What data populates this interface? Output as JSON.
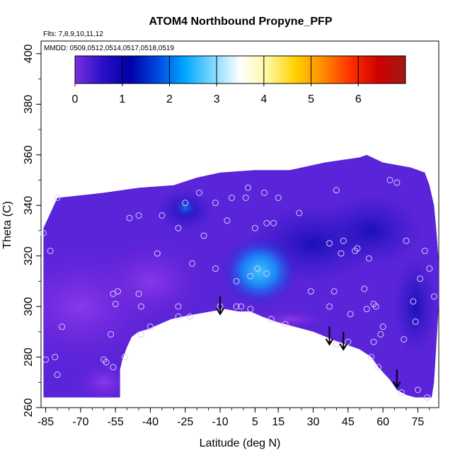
{
  "chart_data": {
    "type": "heatmap",
    "title": "ATOM4 Northbound Propyne_PFP",
    "flights_note": "Flts: 7,8,9,10,11,12",
    "dates_note": "MMDD: 0509,0512,0514,0517,0518,0519",
    "xlabel": "Latitude (deg N)",
    "ylabel": "Theta (C)",
    "xlim": [
      -87,
      84
    ],
    "ylim": [
      260,
      405
    ],
    "x_ticks": [
      -85,
      -70,
      -55,
      -40,
      -25,
      -10,
      5,
      15,
      30,
      45,
      60,
      75
    ],
    "x_tick_labels": [
      "-85",
      "-70",
      "-55",
      "-40",
      "-25",
      "-10",
      "5",
      "15",
      "30",
      "45",
      "60",
      "75"
    ],
    "y_ticks": [
      260,
      280,
      300,
      320,
      340,
      360,
      380,
      400
    ],
    "y_tick_labels": [
      "260",
      "280",
      "300",
      "320",
      "340",
      "360",
      "380",
      "400"
    ],
    "colorbar": {
      "range": [
        0,
        7
      ],
      "ticks": [
        0,
        1,
        2,
        3,
        4,
        5,
        6
      ],
      "tick_labels": [
        "0",
        "1",
        "2",
        "3",
        "4",
        "5",
        "6"
      ],
      "colors": [
        "#7b2fe0",
        "#2a10c8",
        "#0000a8",
        "#0048e0",
        "#00a8ff",
        "#7fd8ff",
        "#ffffff",
        "#fff7a0",
        "#ffd000",
        "#ff8c00",
        "#ff3000",
        "#d00000",
        "#a01818"
      ]
    },
    "field_color_low": "#7a28e0",
    "field_color_mid": "#2a1acb",
    "field_color_high": "#1fa0ff",
    "sample_points": [
      {
        "x": -86,
        "y": 329
      },
      {
        "x": -85,
        "y": 279
      },
      {
        "x": -83,
        "y": 322
      },
      {
        "x": -80,
        "y": 343
      },
      {
        "x": -81,
        "y": 280
      },
      {
        "x": -80,
        "y": 273
      },
      {
        "x": -78,
        "y": 292
      },
      {
        "x": -60,
        "y": 279
      },
      {
        "x": -59,
        "y": 278
      },
      {
        "x": -56,
        "y": 305
      },
      {
        "x": -54,
        "y": 306
      },
      {
        "x": -55,
        "y": 301
      },
      {
        "x": -57,
        "y": 289
      },
      {
        "x": -56,
        "y": 276
      },
      {
        "x": -51,
        "y": 280
      },
      {
        "x": -49,
        "y": 335
      },
      {
        "x": -45,
        "y": 336
      },
      {
        "x": -45,
        "y": 305
      },
      {
        "x": -44,
        "y": 300
      },
      {
        "x": -44,
        "y": 289
      },
      {
        "x": -40,
        "y": 292
      },
      {
        "x": -37,
        "y": 321
      },
      {
        "x": -35,
        "y": 336
      },
      {
        "x": -28,
        "y": 331
      },
      {
        "x": -28,
        "y": 300
      },
      {
        "x": -28,
        "y": 296
      },
      {
        "x": -25,
        "y": 341
      },
      {
        "x": -23,
        "y": 296
      },
      {
        "x": -22,
        "y": 317
      },
      {
        "x": -19,
        "y": 345
      },
      {
        "x": -17,
        "y": 328
      },
      {
        "x": -12,
        "y": 341
      },
      {
        "x": -12,
        "y": 315
      },
      {
        "x": -10,
        "y": 300
      },
      {
        "x": -7,
        "y": 334
      },
      {
        "x": -5,
        "y": 343
      },
      {
        "x": -3,
        "y": 310
      },
      {
        "x": -3,
        "y": 300
      },
      {
        "x": -1,
        "y": 300
      },
      {
        "x": 1,
        "y": 343
      },
      {
        "x": 2,
        "y": 347
      },
      {
        "x": 3,
        "y": 299
      },
      {
        "x": 3,
        "y": 312
      },
      {
        "x": 5,
        "y": 331
      },
      {
        "x": 6,
        "y": 315
      },
      {
        "x": 9,
        "y": 345
      },
      {
        "x": 10,
        "y": 333
      },
      {
        "x": 10,
        "y": 313
      },
      {
        "x": 12,
        "y": 295
      },
      {
        "x": 13,
        "y": 333
      },
      {
        "x": 15,
        "y": 343
      },
      {
        "x": 18,
        "y": 293
      },
      {
        "x": 24,
        "y": 337
      },
      {
        "x": 29,
        "y": 306
      },
      {
        "x": 37,
        "y": 325
      },
      {
        "x": 37,
        "y": 300
      },
      {
        "x": 39,
        "y": 306
      },
      {
        "x": 40,
        "y": 346
      },
      {
        "x": 42,
        "y": 321
      },
      {
        "x": 43,
        "y": 326
      },
      {
        "x": 40,
        "y": 285
      },
      {
        "x": 46,
        "y": 297
      },
      {
        "x": 45,
        "y": 286
      },
      {
        "x": 48,
        "y": 322
      },
      {
        "x": 49,
        "y": 323
      },
      {
        "x": 52,
        "y": 307
      },
      {
        "x": 53,
        "y": 299
      },
      {
        "x": 54,
        "y": 319
      },
      {
        "x": 55,
        "y": 280
      },
      {
        "x": 56,
        "y": 286
      },
      {
        "x": 56,
        "y": 301
      },
      {
        "x": 57,
        "y": 300
      },
      {
        "x": 58,
        "y": 276
      },
      {
        "x": 59,
        "y": 289
      },
      {
        "x": 60,
        "y": 292
      },
      {
        "x": 63,
        "y": 350
      },
      {
        "x": 66,
        "y": 349
      },
      {
        "x": 68,
        "y": 266
      },
      {
        "x": 69,
        "y": 287
      },
      {
        "x": 70,
        "y": 326
      },
      {
        "x": 73,
        "y": 302
      },
      {
        "x": 74,
        "y": 294
      },
      {
        "x": 75,
        "y": 267
      },
      {
        "x": 76,
        "y": 311
      },
      {
        "x": 78,
        "y": 322
      },
      {
        "x": 79,
        "y": 264
      },
      {
        "x": 80,
        "y": 315
      },
      {
        "x": 82,
        "y": 304
      }
    ],
    "arrows": [
      {
        "x": -10,
        "y_top": 304,
        "y_tip": 297
      },
      {
        "x": 37,
        "y_top": 292,
        "y_tip": 285
      },
      {
        "x": 43,
        "y_top": 290,
        "y_tip": 283
      },
      {
        "x": 66,
        "y_top": 275,
        "y_tip": 268
      }
    ]
  }
}
